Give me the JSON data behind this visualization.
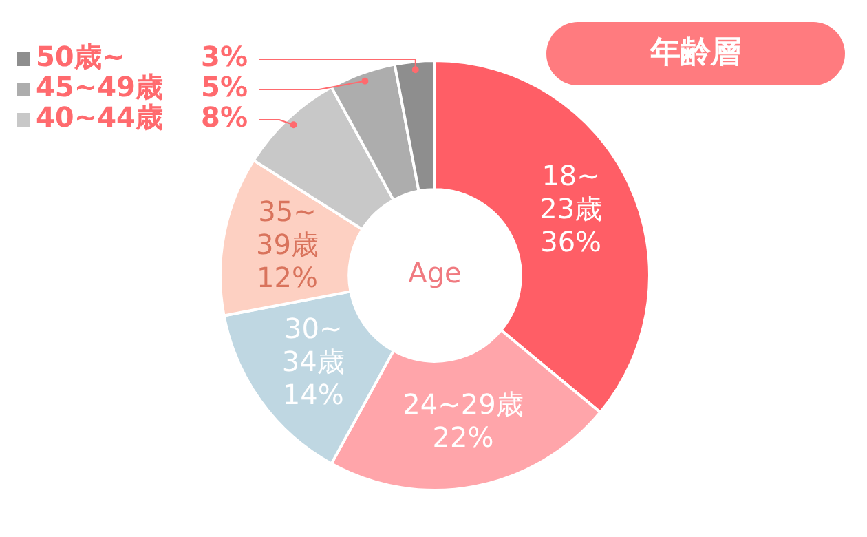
{
  "chart_data": {
    "type": "donut",
    "title": "年齢層",
    "categories": [
      "18~23歳",
      "24~29歳",
      "30~34歳",
      "35~39歳",
      "40~44歳",
      "45~49歳",
      "50歳~"
    ],
    "values": [
      36,
      22,
      14,
      12,
      8,
      5,
      3
    ],
    "value_labels": [
      "36%",
      "22%",
      "14%",
      "12%",
      "8%",
      "5%",
      "3%"
    ],
    "colors": [
      "#ff5e66",
      "#ffa5aa",
      "#bfd7e2",
      "#fdd0c2",
      "#c8c8c8",
      "#adadad",
      "#8e8e8e"
    ],
    "annotations": [
      "Age"
    ],
    "legend": "top left"
  }
}
